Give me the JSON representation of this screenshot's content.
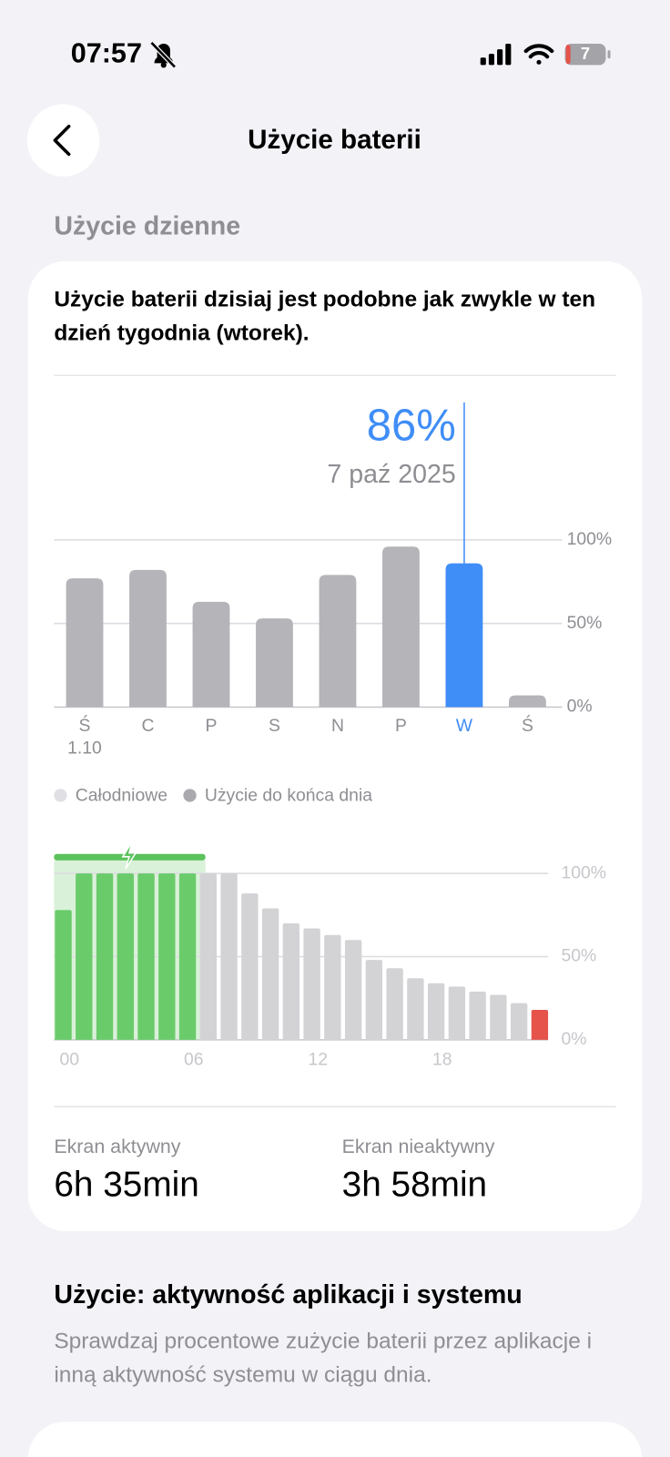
{
  "status_bar": {
    "time": "07:57",
    "battery": "7"
  },
  "header": {
    "title": "Użycie baterii"
  },
  "section_title": "Użycie dzienne",
  "summary": "Użycie baterii dzisiaj jest podobne jak zwykle w ten dzień tygodnia (wtorek).",
  "chart_data": [
    {
      "type": "bar",
      "categories": [
        "Ś",
        "C",
        "P",
        "S",
        "N",
        "P",
        "W",
        "Ś"
      ],
      "category_sublabels": [
        "1.10",
        null,
        null,
        null,
        null,
        null,
        null,
        null
      ],
      "values": [
        77,
        82,
        63,
        53,
        79,
        96,
        86,
        7
      ],
      "value_labels": [
        null,
        null,
        null,
        null,
        null,
        null,
        "86%",
        null
      ],
      "colors": [
        "#b4b4b9",
        "#b4b4b9",
        "#b4b4b9",
        "#b4b4b9",
        "#b4b4b9",
        "#b4b4b9",
        "#3f8df7",
        "#b4b4b9"
      ],
      "highlight_color": "#3f8df7",
      "highlight_date": "7 paź 2025",
      "ylim": [
        0,
        100
      ],
      "yticks": [
        {
          "value": 0,
          "label": "0%"
        },
        {
          "value": 50,
          "label": "50%"
        },
        {
          "value": 100,
          "label": "100%"
        }
      ],
      "grid": true,
      "legend": [
        {
          "name": "Całodniowe",
          "color": "#e0e0e4"
        },
        {
          "name": "Użycie do końca dnia",
          "color": "#a9a9ae"
        }
      ]
    },
    {
      "type": "bar",
      "categories": [
        "00",
        null,
        null,
        null,
        null,
        null,
        "06",
        null,
        null,
        null,
        null,
        null,
        "12",
        null,
        null,
        null,
        null,
        null,
        "18",
        null,
        null,
        null,
        null,
        null
      ],
      "values": [
        78,
        100,
        100,
        100,
        100,
        100,
        100,
        100,
        100,
        88,
        79,
        70,
        67,
        63,
        60,
        48,
        43,
        37,
        34,
        32,
        29,
        27,
        22,
        18
      ],
      "colors": [
        "#6acb6a",
        "#6acb6a",
        "#6acb6a",
        "#6acb6a",
        "#6acb6a",
        "#6acb6a",
        "#6acb6a",
        "#d3d3d6",
        "#d3d3d6",
        "#d3d3d6",
        "#d3d3d6",
        "#d3d3d6",
        "#d3d3d6",
        "#d3d3d6",
        "#d3d3d6",
        "#d3d3d6",
        "#d3d3d6",
        "#d3d3d6",
        "#d3d3d6",
        "#d3d3d6",
        "#d3d3d6",
        "#d3d3d6",
        "#d3d3d6",
        "#e5534b"
      ],
      "ylim": [
        0,
        100
      ],
      "yticks": [
        {
          "value": 0,
          "label": "0%"
        },
        {
          "value": 50,
          "label": "50%"
        },
        {
          "value": 100,
          "label": "100%"
        }
      ],
      "grid": true
    }
  ],
  "stats": [
    {
      "label": "Ekran aktywny",
      "value": "6h 35min"
    },
    {
      "label": "Ekran nieaktywny",
      "value": "3h 58min"
    }
  ],
  "apps_section": {
    "title": "Użycie: aktywność aplikacji i systemu",
    "description": "Sprawdzaj procentowe zużycie baterii przez aplikacje i inną aktywność systemu w ciągu dnia."
  }
}
